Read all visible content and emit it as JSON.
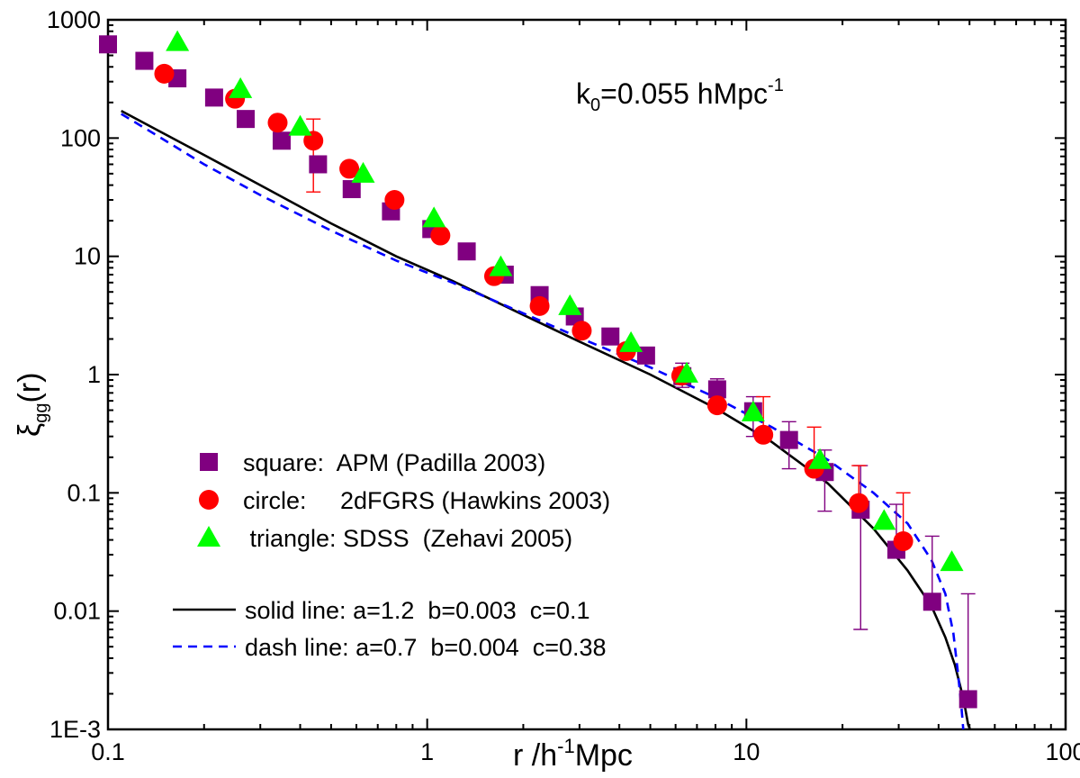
{
  "chart_data": {
    "type": "scatter",
    "title": "",
    "xlabel": "r /h⁻¹Mpc",
    "ylabel": "ξ_gg(r)",
    "xlabel_parts": {
      "main": "r /h",
      "sup": "-1",
      "tail": "Mpc"
    },
    "ylabel_parts": {
      "main": "ξ",
      "sub": "gg",
      "tail": "(r)"
    },
    "xscale": "log",
    "yscale": "log",
    "xlim": [
      0.1,
      100
    ],
    "ylim": [
      0.001,
      1000
    ],
    "grid": false,
    "legend_position": "lower-left",
    "x_tick_labels": [
      {
        "value": 0.1,
        "label": "0.1"
      },
      {
        "value": 1,
        "label": "1"
      },
      {
        "value": 10,
        "label": "10"
      },
      {
        "value": 100,
        "label": "100"
      }
    ],
    "y_tick_labels": [
      {
        "value": 0.001,
        "label": "1E-3"
      },
      {
        "value": 0.01,
        "label": "0.01"
      },
      {
        "value": 0.1,
        "label": "0.1"
      },
      {
        "value": 1,
        "label": "1"
      },
      {
        "value": 10,
        "label": "10"
      },
      {
        "value": 100,
        "label": "100"
      },
      {
        "value": 1000,
        "label": "1000"
      }
    ],
    "annotation": {
      "main": "k",
      "sub": "0",
      "mid": "=0.055 hMpc",
      "sup": "-1"
    },
    "series": [
      {
        "name": "square:  APM (Padilla 2003)",
        "marker": "square",
        "color": "#800080",
        "x": [
          0.1,
          0.13,
          0.165,
          0.215,
          0.27,
          0.35,
          0.455,
          0.58,
          0.77,
          1.03,
          1.33,
          1.75,
          2.25,
          2.9,
          3.75,
          4.85,
          6.3,
          8.1,
          10.5,
          13.6,
          17.6,
          22.8,
          29.5,
          38.2,
          49.5
        ],
        "y": [
          620,
          450,
          320,
          220,
          145,
          95,
          60,
          37,
          24,
          17,
          11,
          7.0,
          4.7,
          3.1,
          2.1,
          1.45,
          0.97,
          0.75,
          0.49,
          0.28,
          0.15,
          0.072,
          0.033,
          0.012,
          0.0018
        ],
        "err_low": [
          null,
          null,
          null,
          null,
          null,
          null,
          null,
          null,
          null,
          null,
          null,
          null,
          null,
          null,
          1.9,
          1.25,
          0.78,
          0.55,
          0.3,
          0.16,
          0.07,
          0.007,
          null,
          null,
          null
        ],
        "err_high": [
          null,
          null,
          null,
          null,
          null,
          null,
          null,
          null,
          null,
          null,
          null,
          null,
          null,
          null,
          2.3,
          1.65,
          1.25,
          0.92,
          0.65,
          0.4,
          0.23,
          0.17,
          0.08,
          0.043,
          0.014
        ]
      },
      {
        "name": "circle:     2dFGRS (Hawkins 2003)",
        "marker": "circle",
        "color": "#ff0000",
        "x": [
          0.15,
          0.25,
          0.34,
          0.44,
          0.57,
          0.79,
          1.1,
          1.62,
          2.25,
          3.05,
          4.2,
          6.25,
          8.1,
          11.3,
          16.3,
          22.5,
          31
        ],
        "y": [
          350,
          215,
          135,
          95,
          55,
          30,
          15,
          6.8,
          3.8,
          2.35,
          1.58,
          0.98,
          0.55,
          0.31,
          0.16,
          0.082,
          0.039
        ],
        "err_low": [
          null,
          null,
          null,
          null,
          null,
          null,
          null,
          null,
          null,
          null,
          null,
          null,
          null,
          null,
          null,
          null,
          null
        ],
        "err_high": [
          null,
          null,
          null,
          null,
          null,
          null,
          null,
          null,
          null,
          null,
          null,
          null,
          null,
          null,
          null,
          null,
          null
        ],
        "err_low_red": [
          null,
          null,
          null,
          35,
          null,
          null,
          null,
          null,
          null,
          null,
          null,
          null,
          null,
          null,
          null,
          null,
          null
        ],
        "err_high_red": [
          null,
          null,
          null,
          145,
          null,
          null,
          null,
          null,
          null,
          null,
          null,
          null,
          null,
          0.65,
          0.36,
          0.17,
          0.1
        ]
      },
      {
        "name": " triangle: SDSS  (Zehavi 2005)",
        "marker": "triangle",
        "color": "#00ff00",
        "x": [
          0.165,
          0.26,
          0.4,
          0.63,
          1.05,
          1.7,
          2.8,
          4.35,
          6.5,
          10.5,
          17,
          27,
          44
        ],
        "y": [
          650,
          260,
          125,
          50,
          21,
          8.1,
          3.8,
          1.85,
          1.02,
          0.48,
          0.19,
          0.058,
          0.026
        ],
        "err_low": [
          null,
          null,
          null,
          null,
          null,
          null,
          null,
          null,
          null,
          null,
          null,
          null,
          null
        ],
        "err_high": [
          null,
          null,
          null,
          null,
          null,
          null,
          null,
          null,
          null,
          null,
          null,
          null,
          null
        ]
      }
    ],
    "curves": [
      {
        "name": "solid line: a=1.2  b=0.003  c=0.1",
        "style": "solid",
        "color": "#000000",
        "x": [
          0.11,
          0.14,
          0.2,
          0.3,
          0.5,
          0.8,
          1.2,
          2,
          3,
          5,
          8,
          12,
          18,
          25,
          32,
          38,
          42,
          45,
          47,
          48.5,
          49.5,
          50.2
        ],
        "y": [
          170,
          120,
          72,
          40,
          19,
          10,
          6.2,
          3.2,
          1.9,
          1.0,
          0.52,
          0.27,
          0.12,
          0.05,
          0.022,
          0.011,
          0.006,
          0.0035,
          0.0022,
          0.0015,
          0.0011,
          0.001
        ]
      },
      {
        "name": "dash line: a=0.7  b=0.004  c=0.38",
        "style": "dashed",
        "color": "#0000ff",
        "x": [
          0.11,
          0.14,
          0.2,
          0.3,
          0.5,
          0.8,
          1.2,
          2,
          3,
          5,
          8,
          12,
          18,
          25,
          32,
          38,
          42,
          44.5,
          46,
          47.2,
          47.8
        ],
        "y": [
          160,
          108,
          60,
          33,
          16.5,
          9.2,
          6.0,
          3.3,
          2.05,
          1.15,
          0.64,
          0.36,
          0.19,
          0.1,
          0.055,
          0.027,
          0.014,
          0.0065,
          0.003,
          0.0015,
          0.001
        ]
      }
    ]
  }
}
